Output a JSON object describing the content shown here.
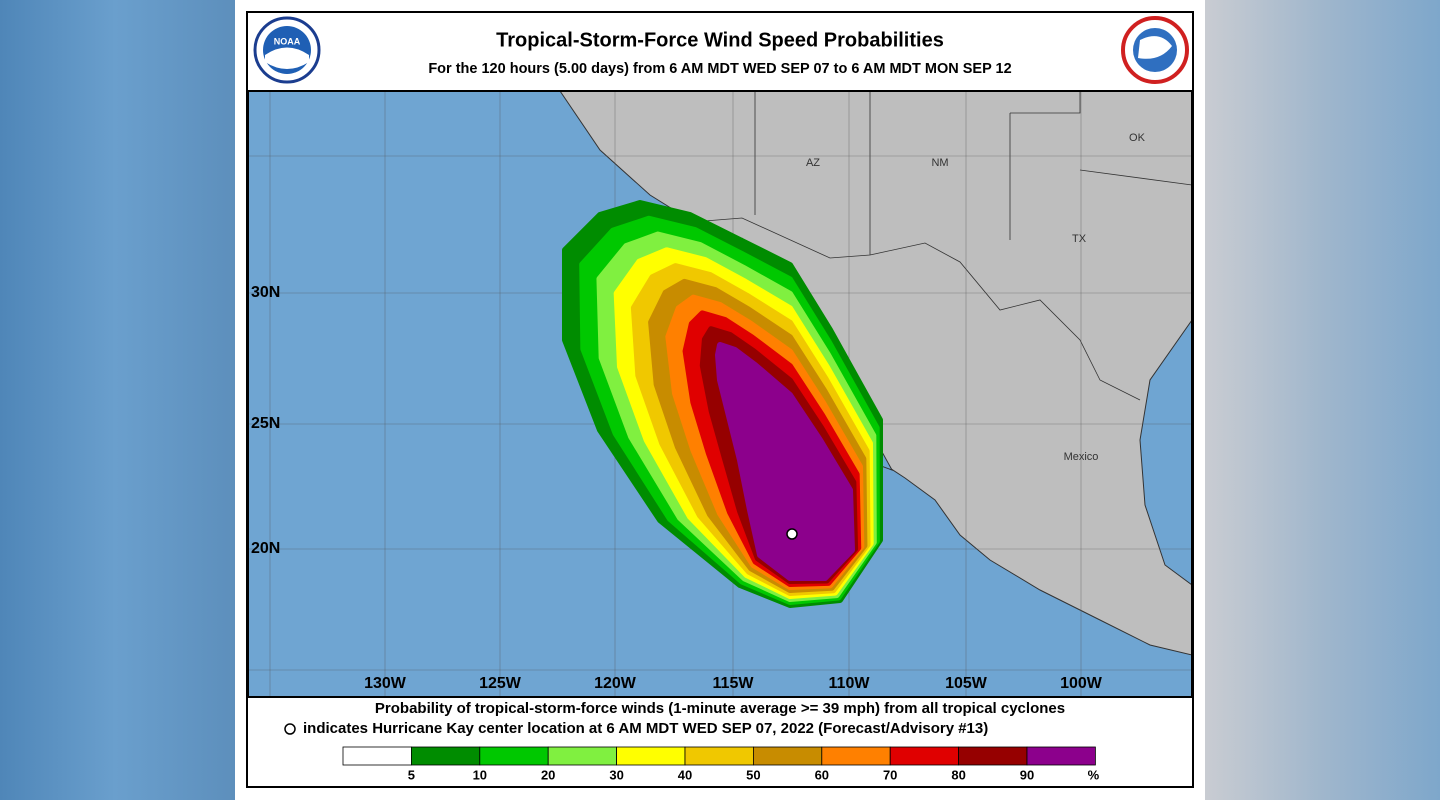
{
  "header": {
    "title": "Tropical-Storm-Force Wind Speed Probabilities",
    "subtitle": "For the 120 hours (5.00 days) from 6 AM MDT WED SEP 07 to 6 AM MDT MON SEP 12",
    "logo_left": "NOAA"
  },
  "map": {
    "lon_labels": [
      "130W",
      "125W",
      "120W",
      "115W",
      "110W",
      "105W",
      "100W"
    ],
    "lat_labels": [
      "30N",
      "25N",
      "20N"
    ],
    "places": [
      "AZ",
      "NM",
      "OK",
      "TX",
      "Mexico"
    ]
  },
  "footer": {
    "line1": "Probability of tropical-storm-force winds (1-minute average >= 39 mph) from all tropical cyclones",
    "line2": "indicates Hurricane Kay center location at 6 AM MDT WED SEP 07, 2022 (Forecast/Advisory #13)"
  },
  "legend": {
    "colors": [
      "#ffffff",
      "#008c00",
      "#00c800",
      "#80f040",
      "#ffff00",
      "#f0c800",
      "#c88c00",
      "#ff8000",
      "#e00000",
      "#960000",
      "#8c008c"
    ],
    "labels": [
      5,
      10,
      20,
      30,
      40,
      50,
      60,
      70,
      80,
      90
    ],
    "unit": "%"
  }
}
